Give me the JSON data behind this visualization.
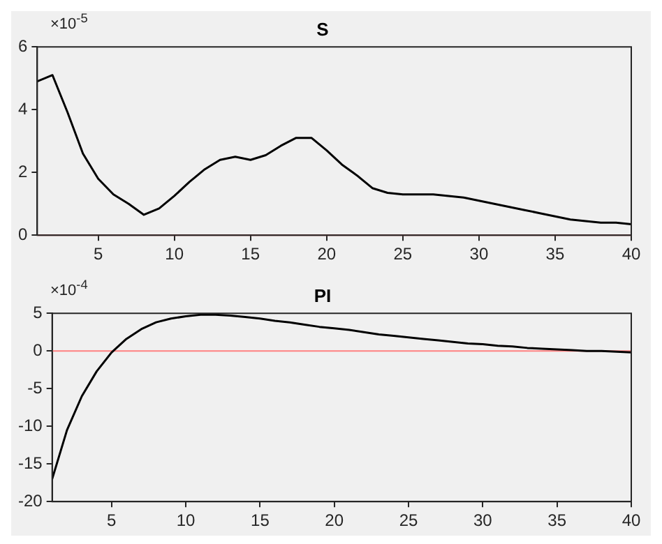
{
  "chart_data": [
    {
      "type": "line",
      "title": "S",
      "annotations": [
        "×10$^{-5}$"
      ],
      "marker": "none",
      "line_style": "solid",
      "grid": false,
      "x": [
        1,
        2,
        3,
        4,
        5,
        6,
        7,
        8,
        9,
        10,
        11,
        12,
        13,
        14,
        15,
        16,
        17,
        18,
        19,
        20,
        21,
        22,
        23,
        24,
        25,
        26,
        27,
        28,
        29,
        30,
        31,
        32,
        33,
        34,
        35,
        36,
        37,
        38,
        39,
        40
      ],
      "series": [
        {
          "color": "#000000",
          "values": [
            4.9,
            5.1,
            3.9,
            2.6,
            1.8,
            1.3,
            1.0,
            0.65,
            0.85,
            1.25,
            1.7,
            2.1,
            2.4,
            2.5,
            2.4,
            2.55,
            2.85,
            3.1,
            3.1,
            2.7,
            2.25,
            1.9,
            1.5,
            1.35,
            1.3,
            1.3,
            1.3,
            1.25,
            1.2,
            1.1,
            1.0,
            0.9,
            0.8,
            0.7,
            0.6,
            0.5,
            0.45,
            0.4,
            0.4,
            0.35
          ]
        }
      ],
      "ref_lines": [
        {
          "axis": "y",
          "value": 0,
          "color": "#d95f5f"
        }
      ],
      "xlim": [
        1,
        40
      ],
      "xticks": [
        5,
        10,
        15,
        20,
        25,
        30,
        35,
        40
      ],
      "ylim": [
        0,
        6
      ],
      "yticks": [
        0,
        2,
        4,
        6
      ]
    },
    {
      "type": "line",
      "title": "PI",
      "annotations": [
        "×10$^{-4}$"
      ],
      "marker": "none",
      "line_style": "solid",
      "grid": false,
      "x": [
        1,
        2,
        3,
        4,
        5,
        6,
        7,
        8,
        9,
        10,
        11,
        12,
        13,
        14,
        15,
        16,
        17,
        18,
        19,
        20,
        21,
        22,
        23,
        24,
        25,
        26,
        27,
        28,
        29,
        30,
        31,
        32,
        33,
        34,
        35,
        36,
        37,
        38,
        39,
        40
      ],
      "series": [
        {
          "color": "#000000",
          "values": [
            -17,
            -10.5,
            -6,
            -2.7,
            -0.2,
            1.6,
            2.9,
            3.8,
            4.3,
            4.6,
            4.8,
            4.8,
            4.7,
            4.5,
            4.3,
            4.0,
            3.8,
            3.5,
            3.2,
            3.0,
            2.8,
            2.5,
            2.2,
            2.0,
            1.8,
            1.6,
            1.4,
            1.2,
            1.0,
            0.9,
            0.7,
            0.6,
            0.4,
            0.3,
            0.2,
            0.1,
            0,
            0,
            -0.1,
            -0.2
          ]
        }
      ],
      "ref_lines": [
        {
          "axis": "y",
          "value": 0,
          "color": "#ff8080"
        }
      ],
      "xlim": [
        1,
        40
      ],
      "xticks": [
        5,
        10,
        15,
        20,
        25,
        30,
        35,
        40
      ],
      "ylim": [
        -20,
        5
      ],
      "yticks": [
        -20,
        -15,
        -10,
        -5,
        0,
        5
      ]
    }
  ]
}
